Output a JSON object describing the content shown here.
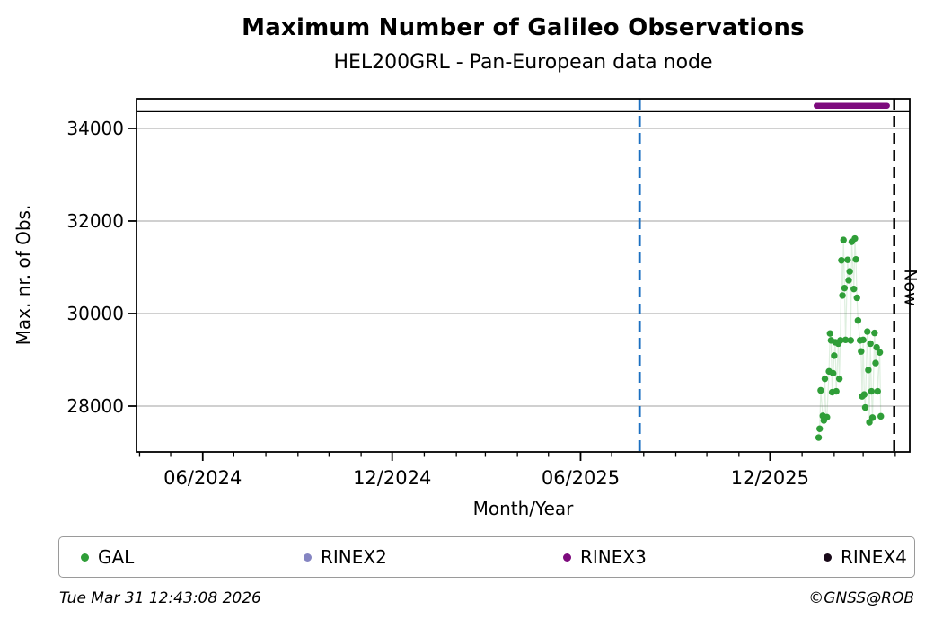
{
  "header": {
    "title": "Maximum Number of Galileo Observations",
    "subtitle": "HEL200GRL - Pan-European data node"
  },
  "footer": {
    "timestamp": "Tue Mar 31 12:43:08 2026",
    "credit": "©GNSS@ROB"
  },
  "legend": {
    "items": [
      {
        "label": "GAL",
        "color": "#2f9e38"
      },
      {
        "label": "RINEX2",
        "color": "#8585c2"
      },
      {
        "label": "RINEX3",
        "color": "#7d0b7d"
      },
      {
        "label": "RINEX4",
        "color": "#190a19"
      }
    ]
  },
  "chart_data": {
    "type": "scatter",
    "title": "Maximum Number of Galileo Observations",
    "subtitle": "HEL200GRL - Pan-European data node",
    "xlabel": "Month/Year",
    "ylabel": "Max. nr. of Obs.",
    "grid": "horizontal",
    "x_axis": {
      "min": "2024-03-29",
      "max": "2026-04-15",
      "minor_tick_interval": "1 month",
      "major_ticks": [
        {
          "date": "2024-06-01",
          "label": "06/2024"
        },
        {
          "date": "2024-12-01",
          "label": "12/2024"
        },
        {
          "date": "2025-06-01",
          "label": "06/2025"
        },
        {
          "date": "2025-12-01",
          "label": "12/2025"
        }
      ]
    },
    "y_axis": {
      "min": 27010,
      "max": 34640,
      "ticks": [
        28000,
        30000,
        32000,
        34000
      ]
    },
    "now_line": {
      "date": "2026-03-31",
      "label": "Now",
      "color": "#000000",
      "style": "dashed"
    },
    "event_line": {
      "date": "2025-07-28",
      "color": "#1b6fc1",
      "style": "dashed"
    },
    "reference_line": {
      "value": 34370,
      "color": "#000000"
    },
    "series": [
      {
        "name": "GAL",
        "color": "#2f9e38",
        "marker": "circle",
        "points": [
          [
            "2026-01-17",
            27320
          ],
          [
            "2026-01-18",
            27510
          ],
          [
            "2026-01-19",
            28340
          ],
          [
            "2026-01-21",
            27790
          ],
          [
            "2026-01-22",
            27690
          ],
          [
            "2026-01-23",
            28590
          ],
          [
            "2026-01-24",
            27750
          ],
          [
            "2026-01-25",
            27760
          ],
          [
            "2026-01-27",
            28750
          ],
          [
            "2026-01-28",
            29570
          ],
          [
            "2026-01-29",
            29420
          ],
          [
            "2026-01-30",
            28300
          ],
          [
            "2026-01-31",
            28710
          ],
          [
            "2026-02-01",
            29090
          ],
          [
            "2026-02-02",
            29380
          ],
          [
            "2026-02-03",
            28320
          ],
          [
            "2026-02-05",
            29350
          ],
          [
            "2026-02-06",
            28590
          ],
          [
            "2026-02-07",
            29420
          ],
          [
            "2026-02-08",
            31150
          ],
          [
            "2026-02-09",
            30390
          ],
          [
            "2026-02-10",
            31590
          ],
          [
            "2026-02-11",
            30550
          ],
          [
            "2026-02-12",
            29430
          ],
          [
            "2026-02-14",
            31160
          ],
          [
            "2026-02-15",
            30720
          ],
          [
            "2026-02-16",
            30910
          ],
          [
            "2026-02-17",
            29420
          ],
          [
            "2026-02-18",
            31550
          ],
          [
            "2026-02-20",
            30530
          ],
          [
            "2026-02-21",
            31620
          ],
          [
            "2026-02-22",
            31170
          ],
          [
            "2026-02-23",
            30340
          ],
          [
            "2026-02-24",
            29850
          ],
          [
            "2026-02-26",
            29420
          ],
          [
            "2026-02-27",
            29180
          ],
          [
            "2026-02-28",
            28210
          ],
          [
            "2026-03-01",
            29430
          ],
          [
            "2026-03-02",
            28250
          ],
          [
            "2026-03-03",
            27970
          ],
          [
            "2026-03-05",
            29610
          ],
          [
            "2026-03-06",
            28780
          ],
          [
            "2026-03-07",
            27650
          ],
          [
            "2026-03-08",
            29350
          ],
          [
            "2026-03-09",
            28320
          ],
          [
            "2026-03-10",
            27750
          ],
          [
            "2026-03-12",
            29580
          ],
          [
            "2026-03-13",
            28930
          ],
          [
            "2026-03-14",
            29270
          ],
          [
            "2026-03-15",
            28320
          ],
          [
            "2026-03-17",
            29160
          ],
          [
            "2026-03-18",
            27780
          ]
        ]
      },
      {
        "name": "RINEX2",
        "color": "#8585c2",
        "points": []
      },
      {
        "name": "RINEX3",
        "color": "#7d0b7d",
        "segment": {
          "start": "2026-01-15",
          "end": "2026-03-24",
          "value": 34490
        }
      },
      {
        "name": "RINEX4",
        "color": "#190a19",
        "points": []
      }
    ]
  }
}
